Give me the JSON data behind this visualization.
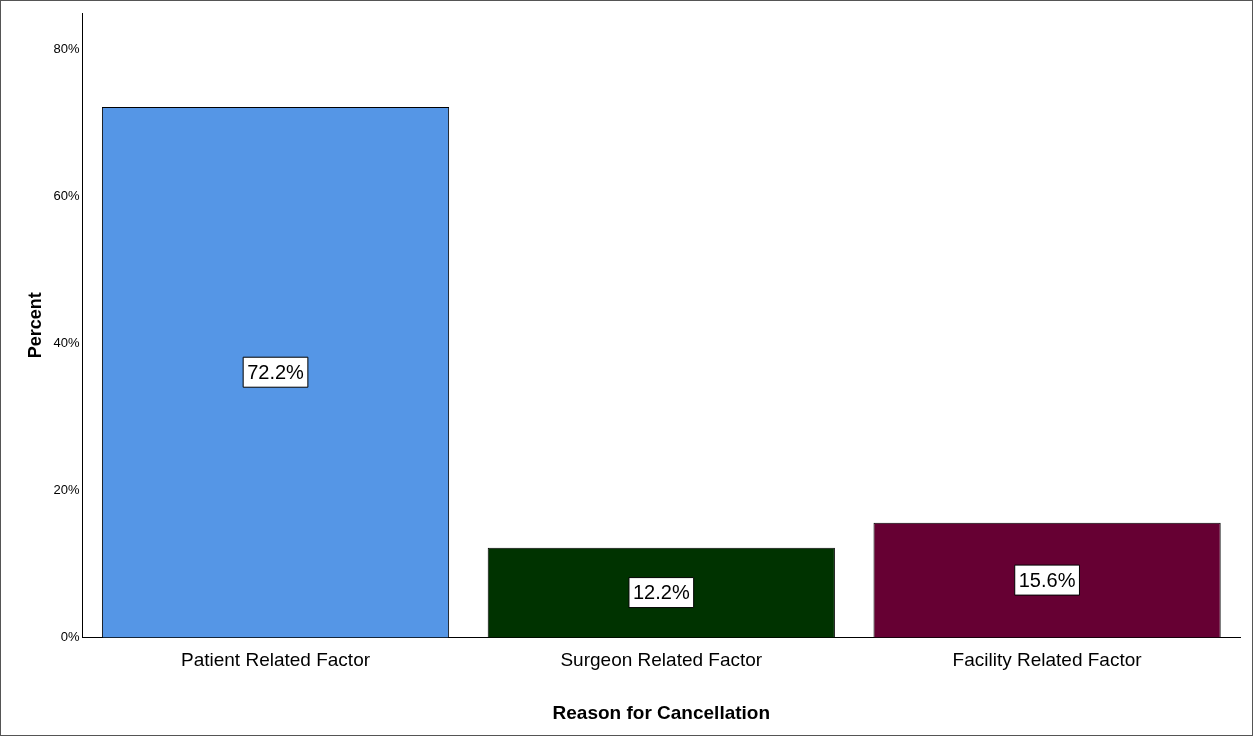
{
  "chart_data": {
    "type": "bar",
    "xlabel": "Reason for Cancellation",
    "ylabel": "Percent",
    "categories": [
      "Patient Related Factor",
      "Surgeon Related Factor",
      "Facility Related Factor"
    ],
    "values": [
      72.2,
      12.2,
      15.6
    ],
    "colors": [
      "#5596e6",
      "#003300",
      "#660033"
    ],
    "value_labels": [
      "72.2%",
      "12.2%",
      "15.6%"
    ],
    "ylim": [
      0,
      85
    ],
    "yticks": [
      {
        "value": 0,
        "label": "0%"
      },
      {
        "value": 20,
        "label": "20%"
      },
      {
        "value": 40,
        "label": "40%"
      },
      {
        "value": 60,
        "label": "60%"
      },
      {
        "value": 80,
        "label": "80%"
      }
    ],
    "grid": false,
    "legend": false
  }
}
